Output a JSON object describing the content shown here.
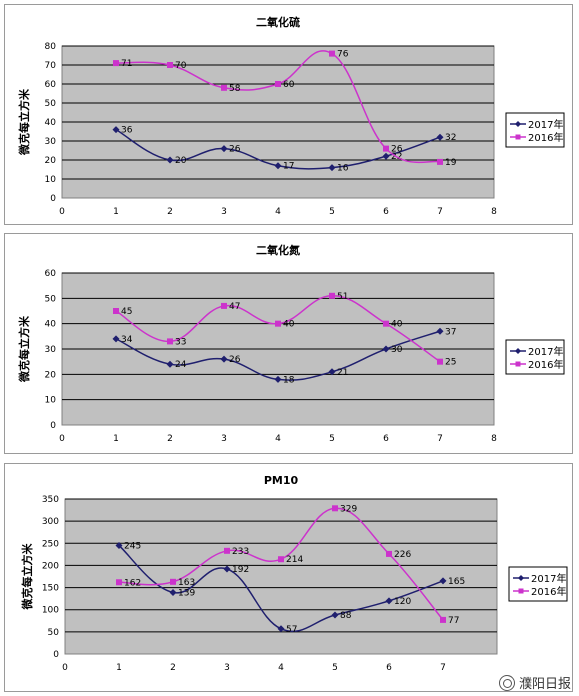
{
  "colors": {
    "series_2017": "#1f1f6e",
    "series_2016": "#cc33cc",
    "plot_bg": "#c0c0c0",
    "grid": "#000000"
  },
  "legend": {
    "series_2017": "2017年",
    "series_2016": "2016年",
    "position": "right"
  },
  "ylabel": "微克每立方米",
  "watermark": "濮阳日报",
  "chart_data": [
    {
      "type": "line",
      "title": "二氧化硫",
      "ylabel": "微克每立方米",
      "x": [
        1,
        2,
        3,
        4,
        5,
        6,
        7
      ],
      "xlim": [
        0,
        8
      ],
      "ylim": [
        0,
        80
      ],
      "xticks": [
        "0",
        "1",
        "2",
        "3",
        "4",
        "5",
        "6",
        "7",
        "8"
      ],
      "yticks": [
        "0",
        "10",
        "20",
        "30",
        "40",
        "50",
        "60",
        "70",
        "80"
      ],
      "grid": true,
      "legend": "right",
      "series": [
        {
          "name": "2017年",
          "values": [
            36,
            20,
            26,
            17,
            16,
            22,
            32
          ]
        },
        {
          "name": "2016年",
          "values": [
            71,
            70,
            58,
            60,
            76,
            26,
            19
          ]
        }
      ]
    },
    {
      "type": "line",
      "title": "二氧化氮",
      "ylabel": "微克每立方米",
      "x": [
        1,
        2,
        3,
        4,
        5,
        6,
        7
      ],
      "xlim": [
        0,
        8
      ],
      "ylim": [
        0,
        60
      ],
      "xticks": [
        "0",
        "1",
        "2",
        "3",
        "4",
        "5",
        "6",
        "7",
        "8"
      ],
      "yticks": [
        "0",
        "10",
        "20",
        "30",
        "40",
        "50",
        "60"
      ],
      "grid": true,
      "legend": "right",
      "series": [
        {
          "name": "2017年",
          "values": [
            34,
            24,
            26,
            18,
            21,
            30,
            37
          ]
        },
        {
          "name": "2016年",
          "values": [
            45,
            33,
            47,
            40,
            51,
            40,
            25
          ]
        }
      ]
    },
    {
      "type": "line",
      "title": "PM10",
      "ylabel": "微克每立方米",
      "x": [
        1,
        2,
        3,
        4,
        5,
        6,
        7
      ],
      "xlim": [
        0,
        8
      ],
      "ylim": [
        0,
        350
      ],
      "xticks": [
        "0",
        "1",
        "2",
        "3",
        "4",
        "5",
        "6",
        "7"
      ],
      "yticks": [
        "0",
        "50",
        "100",
        "150",
        "200",
        "250",
        "300",
        "350"
      ],
      "grid": true,
      "legend": "right",
      "series": [
        {
          "name": "2017年",
          "values": [
            245,
            139,
            192,
            57,
            88,
            120,
            165
          ]
        },
        {
          "name": "2016年",
          "values": [
            162,
            163,
            233,
            214,
            329,
            226,
            77
          ]
        }
      ]
    }
  ]
}
